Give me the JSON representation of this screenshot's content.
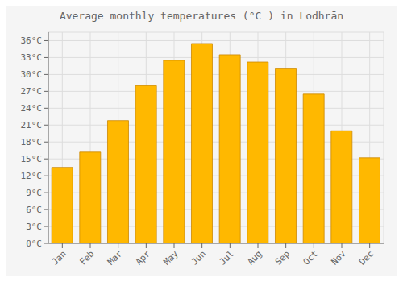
{
  "chart_data": {
    "type": "bar",
    "title": "Average monthly temperatures (°C ) in Lodhrān",
    "categories": [
      "Jan",
      "Feb",
      "Mar",
      "Apr",
      "May",
      "Jun",
      "Jul",
      "Aug",
      "Sep",
      "Oct",
      "Nov",
      "Dec"
    ],
    "values": [
      13.5,
      16.2,
      21.8,
      28.0,
      32.5,
      35.5,
      33.5,
      32.2,
      31.0,
      26.5,
      20.0,
      15.2
    ],
    "color": "#FFB800",
    "ylim": [
      0,
      37.5
    ],
    "yticks": [
      {
        "value": 0,
        "label": "0°C"
      },
      {
        "value": 3,
        "label": "3°C"
      },
      {
        "value": 6,
        "label": "6°C"
      },
      {
        "value": 9,
        "label": "9°C"
      },
      {
        "value": 12,
        "label": "12°C"
      },
      {
        "value": 15,
        "label": "15°C"
      },
      {
        "value": 18,
        "label": "18°C"
      },
      {
        "value": 21,
        "label": "21°C"
      },
      {
        "value": 24,
        "label": "24°C"
      },
      {
        "value": 27,
        "label": "27°C"
      },
      {
        "value": 30,
        "label": "30°C"
      },
      {
        "value": 33,
        "label": "33°C"
      },
      {
        "value": 36,
        "label": "36°C"
      }
    ],
    "grid": true
  }
}
